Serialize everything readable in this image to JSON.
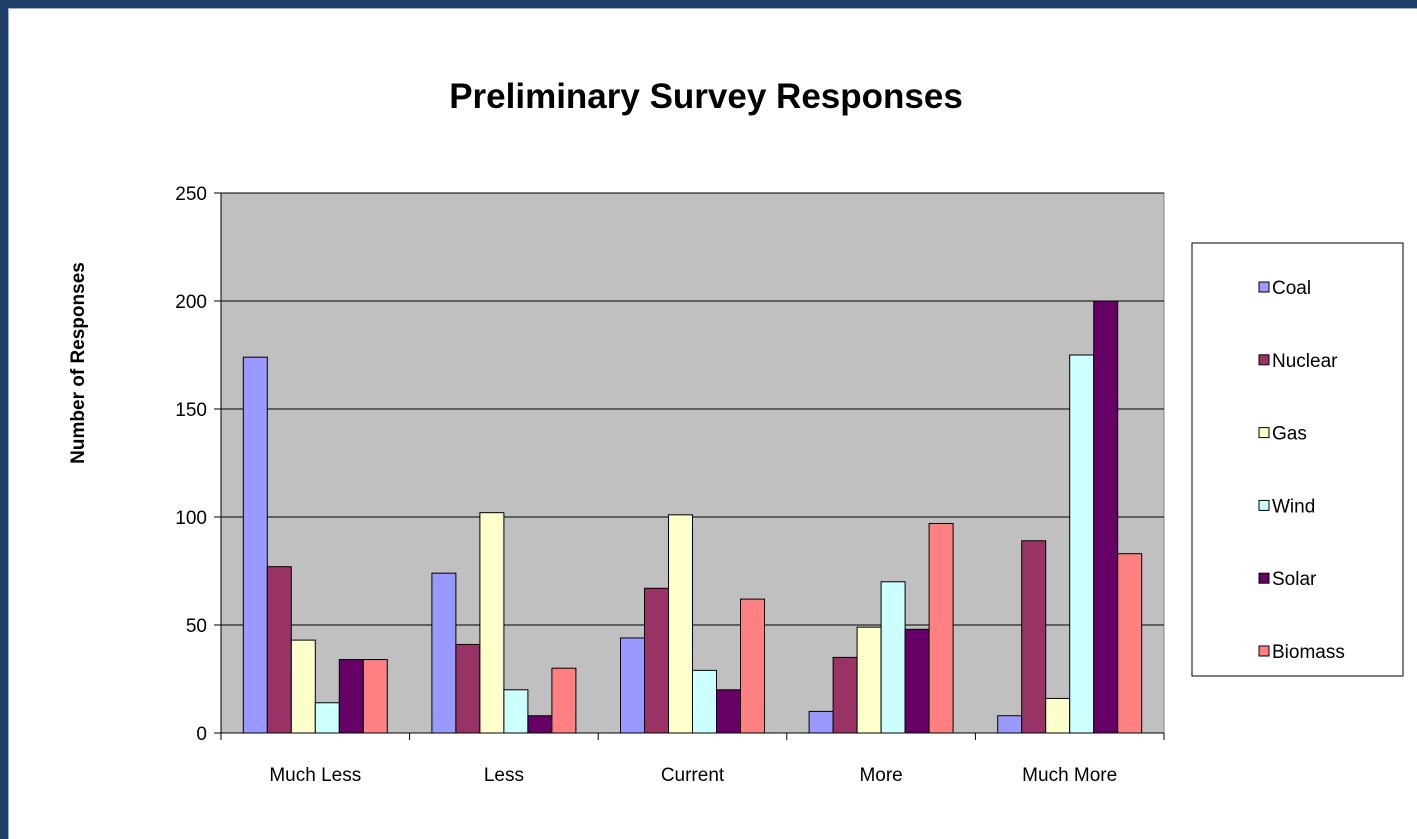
{
  "chart_data": {
    "type": "bar",
    "title": "Preliminary Survey Responses",
    "xlabel": "",
    "ylabel": "Number of Responses",
    "ylim": [
      0,
      250
    ],
    "yticks": [
      0,
      50,
      100,
      150,
      200,
      250
    ],
    "grid": true,
    "legend_position": "right",
    "categories": [
      "Much Less",
      "Less",
      "Current",
      "More",
      "Much More"
    ],
    "series": [
      {
        "name": "Coal",
        "color": "#9999ff",
        "values": [
          174,
          74,
          44,
          10,
          8
        ]
      },
      {
        "name": "Nuclear",
        "color": "#993366",
        "values": [
          77,
          41,
          67,
          35,
          89
        ]
      },
      {
        "name": "Gas",
        "color": "#ffffcc",
        "values": [
          43,
          102,
          101,
          49,
          16
        ]
      },
      {
        "name": "Wind",
        "color": "#ccffff",
        "values": [
          14,
          20,
          29,
          70,
          175
        ]
      },
      {
        "name": "Solar",
        "color": "#660066",
        "values": [
          34,
          8,
          20,
          48,
          200
        ]
      },
      {
        "name": "Biomass",
        "color": "#ff8080",
        "values": [
          34,
          30,
          62,
          97,
          83
        ]
      }
    ],
    "plot_background": "#c0c0c0"
  }
}
